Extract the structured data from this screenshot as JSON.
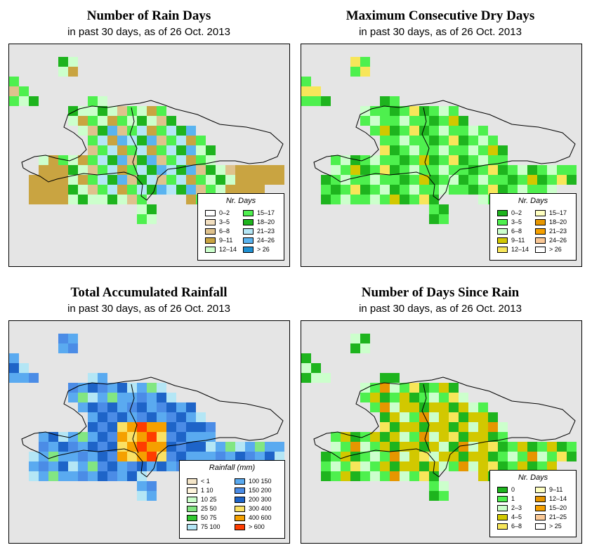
{
  "panels": [
    {
      "title": "Number of Rain Days",
      "subtitle": "in past 30 days, as of  26 Oct. 2013",
      "legend_title": "Nr. Days",
      "legend": [
        {
          "label": "0–2",
          "color": "#ffffff"
        },
        {
          "label": "3–5",
          "color": "#f2dfc0"
        },
        {
          "label": "6–8",
          "color": "#dfc28d"
        },
        {
          "label": "9–11",
          "color": "#c9a441"
        },
        {
          "label": "12–14",
          "color": "#ccffcc"
        },
        {
          "label": "15–17",
          "color": "#4ef04e"
        },
        {
          "label": "18–20",
          "color": "#1eb41e"
        },
        {
          "label": "21–23",
          "color": "#b4e6f5"
        },
        {
          "label": "24–26",
          "color": "#5ab4f0"
        },
        {
          "label": "> 26",
          "color": "#1e90d2"
        }
      ]
    },
    {
      "title": "Maximum Consecutive Dry Days",
      "subtitle": "in past 30 days, as of  26 Oct. 2013",
      "legend_title": "Nr. Days",
      "legend": [
        {
          "label": "0–2",
          "color": "#1eb41e"
        },
        {
          "label": "3–5",
          "color": "#4ef04e"
        },
        {
          "label": "6–8",
          "color": "#ccffcc"
        },
        {
          "label": "9–11",
          "color": "#d2c800"
        },
        {
          "label": "12–14",
          "color": "#f7e65a"
        },
        {
          "label": "15–17",
          "color": "#ffffc0"
        },
        {
          "label": "18–20",
          "color": "#e69600"
        },
        {
          "label": "21–23",
          "color": "#f5a000"
        },
        {
          "label": "24–26",
          "color": "#fac896"
        },
        {
          "label": "> 26",
          "color": "#ffffff"
        }
      ]
    },
    {
      "title": "Total Accumulated Rainfall",
      "subtitle": "in past 30 days, as of  26 Oct. 2013",
      "legend_title": "Rainfall (mm)",
      "legend": [
        {
          "label": "< 1",
          "color": "#f5e6c8"
        },
        {
          "label": "1    10",
          "color": "#fff5dc"
        },
        {
          "label": "10    25",
          "color": "#ccffcc"
        },
        {
          "label": "25    50",
          "color": "#82e682"
        },
        {
          "label": "50    75",
          "color": "#32c832"
        },
        {
          "label": "75  100",
          "color": "#b4e6f5"
        },
        {
          "label": "100  150",
          "color": "#5aaaf0"
        },
        {
          "label": "150  200",
          "color": "#4b8ce6"
        },
        {
          "label": "200  300",
          "color": "#1e64c8"
        },
        {
          "label": "300  400",
          "color": "#fae164"
        },
        {
          "label": "400  600",
          "color": "#f5a000"
        },
        {
          "label": "> 600",
          "color": "#ff3c00"
        }
      ]
    },
    {
      "title": "Number of Days Since Rain",
      "subtitle": "in past 30 days, as of  26 Oct. 2013",
      "legend_title": "Nr. Days",
      "legend": [
        {
          "label": "0",
          "color": "#1eb41e"
        },
        {
          "label": "1",
          "color": "#4ef04e"
        },
        {
          "label": "2–3",
          "color": "#ccffcc"
        },
        {
          "label": "4–5",
          "color": "#d2c800"
        },
        {
          "label": "6–8",
          "color": "#f7e65a"
        },
        {
          "label": "9–11",
          "color": "#ffffc0"
        },
        {
          "label": "12–14",
          "color": "#e69600"
        },
        {
          "label": "15–20",
          "color": "#f5a000"
        },
        {
          "label": "21–25",
          "color": "#fac896"
        },
        {
          "label": "> 25",
          "color": "#ffffff"
        }
      ]
    }
  ]
}
